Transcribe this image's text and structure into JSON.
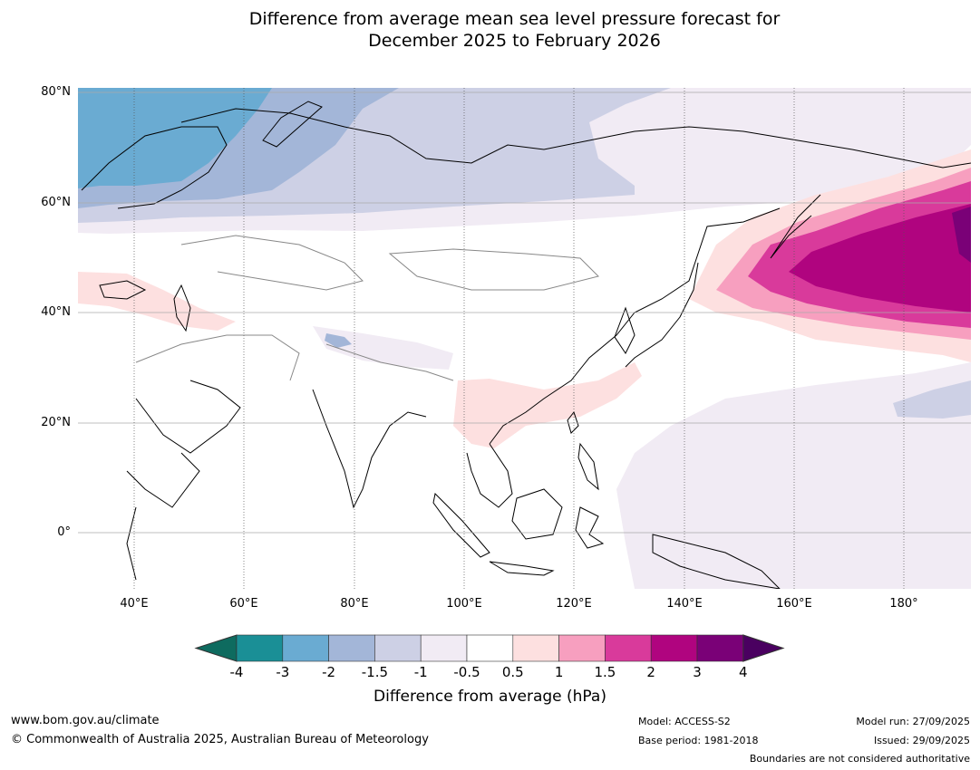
{
  "title": {
    "line1": "Difference from average mean sea level pressure forecast for",
    "line2": "December 2025 to February 2026"
  },
  "axes": {
    "lat_labels": [
      "80°N",
      "60°N",
      "40°N",
      "20°N",
      "0°"
    ],
    "lon_labels": [
      "40°E",
      "60°E",
      "80°E",
      "100°E",
      "120°E",
      "140°E",
      "160°E",
      "180°"
    ]
  },
  "colorbar": {
    "label": "Difference from average (hPa)",
    "ticks": [
      "-4",
      "-3",
      "-2",
      "-1.5",
      "-1",
      "-0.5",
      "0.5",
      "1",
      "1.5",
      "2",
      "3",
      "4"
    ],
    "colors": [
      "#0e6b5f",
      "#1a8f96",
      "#6aabd2",
      "#a3b6d8",
      "#cdd0e5",
      "#f1ebf4",
      "#ffffff",
      "#fde0e0",
      "#f79fbf",
      "#d93a9b",
      "#b0047f",
      "#7a0177",
      "#4a0060"
    ]
  },
  "footer": {
    "website": "www.bom.gov.au/climate",
    "copyright": "© Commonwealth of Australia 2025, Australian Bureau of Meteorology",
    "model": "Model: ACCESS-S2",
    "base_period": "Base period: 1981-2018",
    "model_run": "Model run: 27/09/2025",
    "issued": "Issued: 29/09/2025",
    "disclaimer": "Boundaries are not considered authoritative"
  }
}
